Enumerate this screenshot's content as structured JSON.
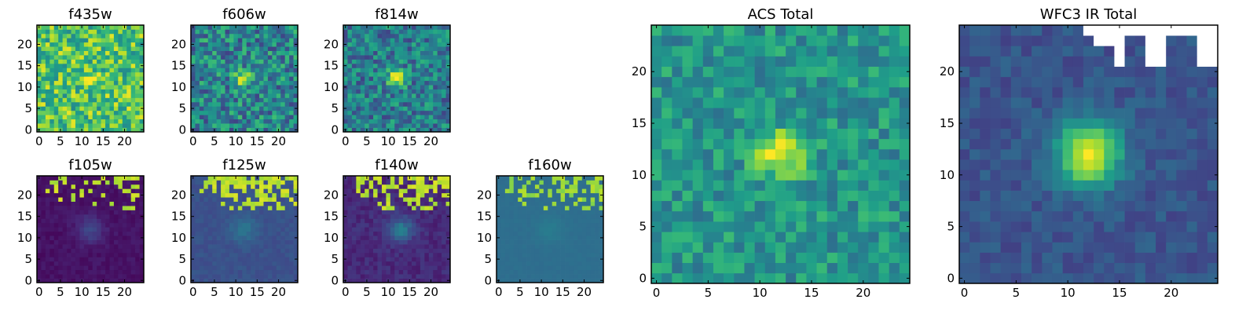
{
  "colormap": "viridis",
  "colors": {
    "background": "#ffffff",
    "axis": "#000000",
    "masked_pixel": "#ffffff"
  },
  "chart_data": [
    {
      "type": "heatmap",
      "title": "f435w",
      "image_size": [
        25,
        25
      ],
      "xlim": [
        0,
        24
      ],
      "ylim": [
        0,
        24
      ],
      "xticks": [
        "0",
        "5",
        "10",
        "15",
        "20"
      ],
      "yticks": [
        "0",
        "5",
        "10",
        "15",
        "20"
      ],
      "grid": false,
      "source_center": [
        12,
        12
      ],
      "source_radius": 1.2,
      "source_level": 0.95,
      "background_level": 0.72,
      "noise": 0.25,
      "seed": 11
    },
    {
      "type": "heatmap",
      "title": "f606w",
      "image_size": [
        25,
        25
      ],
      "xlim": [
        0,
        24
      ],
      "ylim": [
        0,
        24
      ],
      "xticks": [
        "0",
        "5",
        "10",
        "15",
        "20"
      ],
      "yticks": [
        "0",
        "5",
        "10",
        "15",
        "20"
      ],
      "grid": false,
      "source_center": [
        12,
        12
      ],
      "source_radius": 1.3,
      "source_level": 1.0,
      "background_level": 0.45,
      "noise": 0.25,
      "seed": 23
    },
    {
      "type": "heatmap",
      "title": "f814w",
      "image_size": [
        25,
        25
      ],
      "xlim": [
        0,
        24
      ],
      "ylim": [
        0,
        24
      ],
      "xticks": [
        "0",
        "5",
        "10",
        "15",
        "20"
      ],
      "yticks": [
        "0",
        "5",
        "10",
        "15",
        "20"
      ],
      "grid": false,
      "source_center": [
        12,
        12
      ],
      "source_radius": 1.4,
      "source_level": 1.0,
      "background_level": 0.42,
      "noise": 0.22,
      "seed": 37
    },
    {
      "type": "heatmap",
      "title": "f105w",
      "image_size": [
        25,
        25
      ],
      "xlim": [
        0,
        24
      ],
      "ylim": [
        0,
        24
      ],
      "xticks": [
        "0",
        "5",
        "10",
        "15",
        "20"
      ],
      "yticks": [
        "0",
        "5",
        "10",
        "15",
        "20"
      ],
      "grid": false,
      "source_center": [
        12,
        12
      ],
      "source_radius": 2.2,
      "source_level": 0.22,
      "background_level": 0.05,
      "noise": 0.03,
      "seed": 41,
      "saturated_region": "top-right",
      "saturated_level": 0.95,
      "saturated_fraction": 0.3
    },
    {
      "type": "heatmap",
      "title": "f125w",
      "image_size": [
        25,
        25
      ],
      "xlim": [
        0,
        24
      ],
      "ylim": [
        0,
        24
      ],
      "xticks": [
        "0",
        "5",
        "10",
        "15",
        "20"
      ],
      "yticks": [
        "0",
        "5",
        "10",
        "15",
        "20"
      ],
      "grid": false,
      "source_center": [
        12,
        12
      ],
      "source_radius": 2.2,
      "source_level": 0.38,
      "background_level": 0.25,
      "noise": 0.03,
      "seed": 53,
      "saturated_region": "top-right",
      "saturated_level": 0.95,
      "saturated_fraction": 0.55
    },
    {
      "type": "heatmap",
      "title": "f140w",
      "image_size": [
        25,
        25
      ],
      "xlim": [
        0,
        24
      ],
      "ylim": [
        0,
        24
      ],
      "xticks": [
        "0",
        "5",
        "10",
        "15",
        "20"
      ],
      "yticks": [
        "0",
        "5",
        "10",
        "15",
        "20"
      ],
      "grid": false,
      "source_center": [
        13,
        12
      ],
      "source_radius": 2.0,
      "source_level": 0.42,
      "background_level": 0.12,
      "noise": 0.05,
      "seed": 67,
      "saturated_region": "top-right",
      "saturated_level": 0.95,
      "saturated_fraction": 0.5
    },
    {
      "type": "heatmap",
      "title": "f160w",
      "image_size": [
        25,
        25
      ],
      "xlim": [
        0,
        24
      ],
      "ylim": [
        0,
        24
      ],
      "xticks": [
        "0",
        "5",
        "10",
        "15",
        "20"
      ],
      "yticks": [
        "0",
        "5",
        "10",
        "15",
        "20"
      ],
      "grid": false,
      "source_center": [
        12,
        12
      ],
      "source_radius": 2.2,
      "source_level": 0.42,
      "background_level": 0.36,
      "noise": 0.01,
      "seed": 79,
      "saturated_region": "top-right",
      "saturated_level": 0.9,
      "saturated_fraction": 0.45
    },
    {
      "type": "heatmap",
      "title": "ACS Total",
      "image_size": [
        25,
        25
      ],
      "xlim": [
        0,
        24
      ],
      "ylim": [
        0,
        24
      ],
      "xticks": [
        "0",
        "5",
        "10",
        "15",
        "20"
      ],
      "yticks": [
        "0",
        "5",
        "10",
        "15",
        "20"
      ],
      "grid": false,
      "source_center": [
        12,
        12
      ],
      "source_radius": 1.6,
      "source_level": 1.0,
      "background_level": 0.52,
      "noise": 0.16,
      "seed": 97
    },
    {
      "type": "heatmap",
      "title": "WFC3 IR Total",
      "image_size": [
        25,
        25
      ],
      "xlim": [
        0,
        24
      ],
      "ylim": [
        0,
        24
      ],
      "xticks": [
        "0",
        "5",
        "10",
        "15",
        "20"
      ],
      "yticks": [
        "0",
        "5",
        "10",
        "15",
        "20"
      ],
      "grid": false,
      "source_center": [
        12,
        12
      ],
      "source_radius": 2.2,
      "source_level": 1.0,
      "background_level": 0.26,
      "noise": 0.07,
      "seed": 113,
      "masked_region": "top-right"
    }
  ]
}
